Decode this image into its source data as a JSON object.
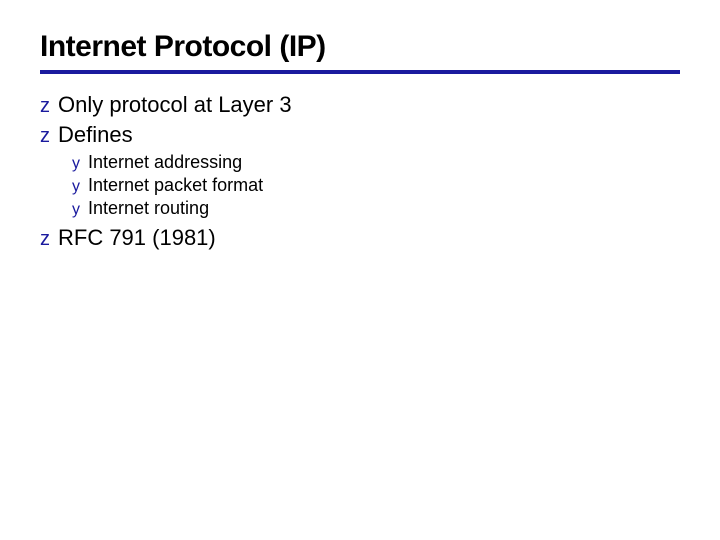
{
  "slide": {
    "title": "Internet Protocol (IP)",
    "title_fontsize": 30,
    "title_color": "#000000",
    "rule_color": "#1a1a9e",
    "rule_thickness": 4,
    "background_color": "#ffffff",
    "bullets_level1": [
      {
        "marker": "z",
        "text": "Only protocol at Layer 3"
      },
      {
        "marker": "z",
        "text": "Defines"
      },
      {
        "marker": "z",
        "text": "RFC 791 (1981)"
      }
    ],
    "bullets_level2_after_index": 1,
    "bullets_level2": [
      {
        "marker": "y",
        "text": "Internet addressing"
      },
      {
        "marker": "y",
        "text": "Internet packet format"
      },
      {
        "marker": "y",
        "text": "Internet routing"
      }
    ],
    "body_fontsize_l1": 22,
    "body_fontsize_l2": 18,
    "body_color": "#000000",
    "marker_color_l1": "#1a1a9e",
    "marker_color_l2": "#1a1a9e",
    "marker_fontsize_l1": 20,
    "marker_fontsize_l2": 16
  }
}
